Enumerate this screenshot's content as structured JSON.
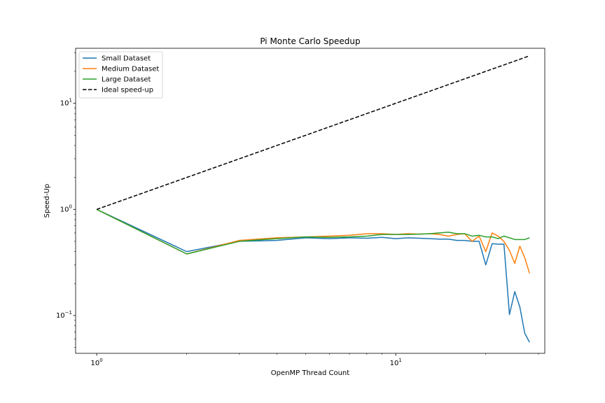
{
  "colors": {
    "small": "#1f77b4",
    "medium": "#ff7f0e",
    "large": "#2ca02c",
    "ideal": "#000000"
  },
  "chart_data": {
    "type": "line",
    "title": "Pi Monte Carlo Speedup",
    "xlabel": "OpenMP Thread Count",
    "ylabel": "Speed-Up",
    "xscale": "log",
    "yscale": "log",
    "xlim": [
      0.85,
      31.5
    ],
    "ylim": [
      0.044,
      33
    ],
    "x_ticks": [
      {
        "value": 1,
        "base": "10",
        "exp": "0"
      },
      {
        "value": 10,
        "base": "10",
        "exp": "1"
      }
    ],
    "y_ticks": [
      {
        "value": 0.1,
        "base": "10",
        "exp": "−1"
      },
      {
        "value": 1,
        "base": "10",
        "exp": "0"
      },
      {
        "value": 10,
        "base": "10",
        "exp": "1"
      }
    ],
    "grid": false,
    "legend_position": "upper left",
    "x": [
      1,
      2,
      3,
      4,
      5,
      6,
      7,
      8,
      9,
      10,
      11,
      12,
      13,
      14,
      15,
      16,
      17,
      18,
      19,
      20,
      21,
      22,
      23,
      24,
      25,
      26,
      27,
      28
    ],
    "series": [
      {
        "name": "Small Dataset",
        "color_key": "small",
        "style": "solid",
        "values": [
          1.0,
          0.4,
          0.5,
          0.51,
          0.54,
          0.53,
          0.54,
          0.535,
          0.545,
          0.53,
          0.54,
          0.535,
          0.53,
          0.525,
          0.525,
          0.51,
          0.51,
          0.5,
          0.5,
          0.3,
          0.475,
          0.47,
          0.47,
          0.102,
          0.168,
          0.12,
          0.068,
          0.056
        ]
      },
      {
        "name": "Medium Dataset",
        "color_key": "medium",
        "style": "solid",
        "values": [
          1.0,
          0.38,
          0.51,
          0.54,
          0.55,
          0.56,
          0.57,
          0.59,
          0.59,
          0.58,
          0.59,
          0.585,
          0.59,
          0.58,
          0.56,
          0.58,
          0.59,
          0.5,
          0.56,
          0.4,
          0.6,
          0.56,
          0.5,
          0.41,
          0.31,
          0.45,
          0.35,
          0.25
        ]
      },
      {
        "name": "Large Dataset",
        "color_key": "large",
        "style": "solid",
        "values": [
          1.0,
          0.38,
          0.5,
          0.53,
          0.55,
          0.545,
          0.55,
          0.56,
          0.58,
          0.58,
          0.58,
          0.585,
          0.59,
          0.6,
          0.61,
          0.59,
          0.59,
          0.56,
          0.57,
          0.55,
          0.55,
          0.53,
          0.56,
          0.54,
          0.52,
          0.52,
          0.52,
          0.54
        ]
      },
      {
        "name": "Ideal speed-up",
        "color_key": "ideal",
        "style": "dashed",
        "values": [
          1,
          2,
          3,
          4,
          5,
          6,
          7,
          8,
          9,
          10,
          11,
          12,
          13,
          14,
          15,
          16,
          17,
          18,
          19,
          20,
          21,
          22,
          23,
          24,
          25,
          26,
          27,
          28
        ]
      }
    ]
  }
}
